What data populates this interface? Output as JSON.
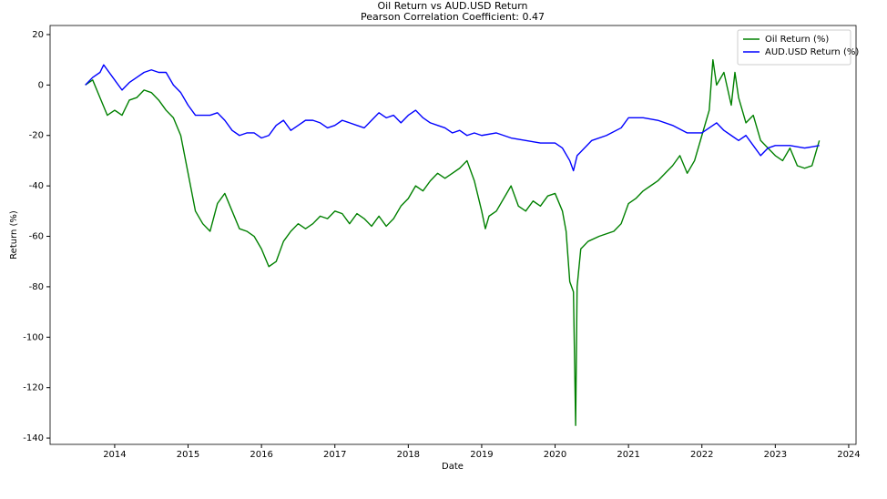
{
  "chart_data": {
    "type": "line",
    "title": "Oil Return vs AUD.USD Return",
    "subtitle": "Pearson Correlation Coefficient: 0.47",
    "x_label": "Date",
    "y_label": "Return (%)",
    "xlim": [
      2013.12,
      2024.1
    ],
    "ylim": [
      -142.5,
      23.6
    ],
    "xticks": [
      2014,
      2015,
      2016,
      2017,
      2018,
      2019,
      2020,
      2021,
      2022,
      2023,
      2024
    ],
    "yticks": [
      -140,
      -120,
      -100,
      -80,
      -60,
      -40,
      -20,
      0,
      20
    ],
    "legend": "upper right",
    "grid": false,
    "series": [
      {
        "name": "Oil Return (%)",
        "color": "#008000",
        "x": [
          2013.6,
          2013.7,
          2013.8,
          2013.9,
          2014.0,
          2014.1,
          2014.2,
          2014.3,
          2014.4,
          2014.5,
          2014.6,
          2014.7,
          2014.8,
          2014.9,
          2015.0,
          2015.1,
          2015.2,
          2015.3,
          2015.4,
          2015.5,
          2015.6,
          2015.7,
          2015.8,
          2015.9,
          2016.0,
          2016.1,
          2016.2,
          2016.3,
          2016.4,
          2016.5,
          2016.6,
          2016.7,
          2016.8,
          2016.9,
          2017.0,
          2017.1,
          2017.2,
          2017.3,
          2017.4,
          2017.5,
          2017.6,
          2017.7,
          2017.8,
          2017.9,
          2018.0,
          2018.1,
          2018.2,
          2018.3,
          2018.4,
          2018.5,
          2018.6,
          2018.7,
          2018.8,
          2018.9,
          2019.0,
          2019.05,
          2019.1,
          2019.2,
          2019.3,
          2019.4,
          2019.5,
          2019.6,
          2019.7,
          2019.8,
          2019.9,
          2020.0,
          2020.1,
          2020.15,
          2020.2,
          2020.25,
          2020.28,
          2020.3,
          2020.35,
          2020.45,
          2020.6,
          2020.8,
          2020.9,
          2021.0,
          2021.1,
          2021.2,
          2021.3,
          2021.4,
          2021.5,
          2021.6,
          2021.7,
          2021.8,
          2021.9,
          2022.0,
          2022.1,
          2022.15,
          2022.2,
          2022.3,
          2022.4,
          2022.45,
          2022.5,
          2022.6,
          2022.7,
          2022.8,
          2022.9,
          2023.0,
          2023.1,
          2023.2,
          2023.3,
          2023.4,
          2023.5,
          2023.6
        ],
        "values": [
          0,
          2,
          -5,
          -12,
          -10,
          -12,
          -6,
          -5,
          -2,
          -3,
          -6,
          -10,
          -13,
          -20,
          -35,
          -50,
          -55,
          -58,
          -47,
          -43,
          -50,
          -57,
          -58,
          -60,
          -65,
          -72,
          -70,
          -62,
          -58,
          -55,
          -57,
          -55,
          -52,
          -53,
          -50,
          -51,
          -55,
          -51,
          -53,
          -56,
          -52,
          -56,
          -53,
          -48,
          -45,
          -40,
          -42,
          -38,
          -35,
          -37,
          -35,
          -33,
          -30,
          -38,
          -50,
          -57,
          -52,
          -50,
          -45,
          -40,
          -48,
          -50,
          -46,
          -48,
          -44,
          -43,
          -50,
          -58,
          -78,
          -82,
          -135,
          -80,
          -65,
          -62,
          -60,
          -58,
          -55,
          -47,
          -45,
          -42,
          -40,
          -38,
          -35,
          -32,
          -28,
          -35,
          -30,
          -20,
          -10,
          10,
          0,
          5,
          -8,
          5,
          -5,
          -15,
          -12,
          -22,
          -25,
          -28,
          -30,
          -25,
          -32,
          -33,
          -32,
          -22
        ]
      },
      {
        "name": "AUD.USD Return (%)",
        "color": "#0000ff",
        "x": [
          2013.6,
          2013.7,
          2013.8,
          2013.85,
          2013.9,
          2014.0,
          2014.1,
          2014.2,
          2014.3,
          2014.4,
          2014.5,
          2014.6,
          2014.7,
          2014.8,
          2014.9,
          2015.0,
          2015.1,
          2015.2,
          2015.3,
          2015.4,
          2015.5,
          2015.6,
          2015.7,
          2015.8,
          2015.9,
          2016.0,
          2016.1,
          2016.2,
          2016.3,
          2016.4,
          2016.5,
          2016.6,
          2016.7,
          2016.8,
          2016.9,
          2017.0,
          2017.1,
          2017.2,
          2017.3,
          2017.4,
          2017.5,
          2017.6,
          2017.7,
          2017.8,
          2017.9,
          2018.0,
          2018.1,
          2018.2,
          2018.3,
          2018.4,
          2018.5,
          2018.6,
          2018.7,
          2018.8,
          2018.9,
          2019.0,
          2019.2,
          2019.4,
          2019.6,
          2019.8,
          2020.0,
          2020.1,
          2020.2,
          2020.25,
          2020.3,
          2020.5,
          2020.7,
          2020.9,
          2021.0,
          2021.2,
          2021.4,
          2021.6,
          2021.8,
          2022.0,
          2022.1,
          2022.2,
          2022.3,
          2022.4,
          2022.5,
          2022.6,
          2022.7,
          2022.8,
          2022.9,
          2023.0,
          2023.2,
          2023.4,
          2023.6
        ],
        "values": [
          0,
          3,
          5,
          8,
          6,
          2,
          -2,
          1,
          3,
          5,
          6,
          5,
          5,
          0,
          -3,
          -8,
          -12,
          -12,
          -12,
          -11,
          -14,
          -18,
          -20,
          -19,
          -19,
          -21,
          -20,
          -16,
          -14,
          -18,
          -16,
          -14,
          -14,
          -15,
          -17,
          -16,
          -14,
          -15,
          -16,
          -17,
          -14,
          -11,
          -13,
          -12,
          -15,
          -12,
          -10,
          -13,
          -15,
          -16,
          -17,
          -19,
          -18,
          -20,
          -19,
          -20,
          -19,
          -21,
          -22,
          -23,
          -23,
          -25,
          -30,
          -34,
          -28,
          -22,
          -20,
          -17,
          -13,
          -13,
          -14,
          -16,
          -19,
          -19,
          -17,
          -15,
          -18,
          -20,
          -22,
          -20,
          -24,
          -28,
          -25,
          -24,
          -24,
          -25,
          -24
        ]
      }
    ]
  }
}
